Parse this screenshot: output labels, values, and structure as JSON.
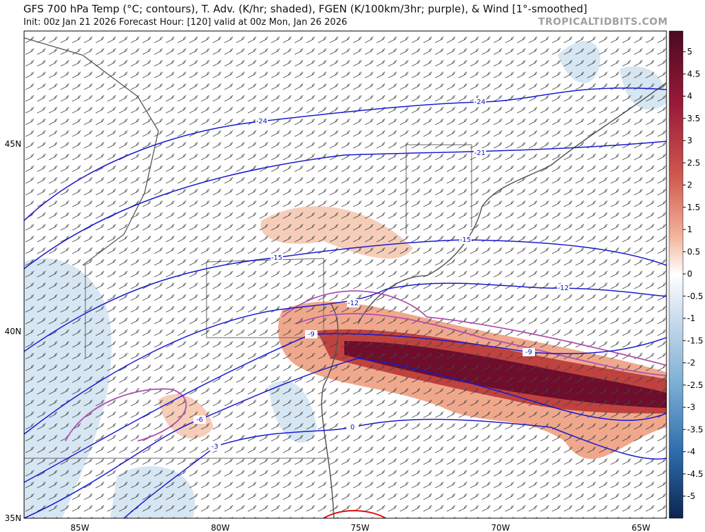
{
  "header": {
    "title": "GFS 700 hPa Temp (°C; contours), T. Adv. (K/hr; shaded), FGEN (K/100km/3hr; purple), & Wind [1°-smoothed]",
    "subtitle": "Init: 00z Jan 21 2026   Forecast Hour: [120]   valid at 00z Mon, Jan 26 2026",
    "watermark": "TROPICALTIDBITS.COM"
  },
  "map": {
    "lat_labels": [
      "45N",
      "40N",
      "35N"
    ],
    "lon_labels": [
      "85W",
      "80W",
      "75W",
      "70W",
      "65W"
    ],
    "contour_labels": [
      -24,
      -24,
      -21,
      -15,
      -15,
      -12,
      -12,
      -9,
      -9,
      -6,
      -3,
      0
    ]
  },
  "colorbar": {
    "ticks": [
      5,
      4.5,
      4,
      3.5,
      3,
      2.5,
      2,
      1.5,
      1,
      0.5,
      0,
      -0.5,
      -1,
      -1.5,
      -2,
      -2.5,
      -3,
      -3.5,
      -4,
      -4.5,
      -5
    ]
  }
}
